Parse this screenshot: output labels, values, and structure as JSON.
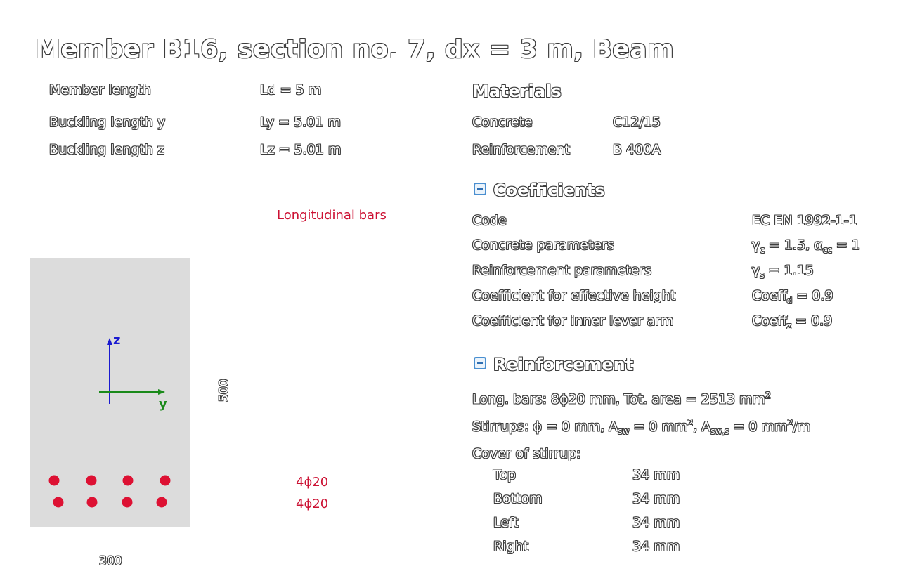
{
  "title": "Member B16, section no. 7, dx = 3 m, Beam",
  "member": {
    "rows": [
      {
        "label": "Member length",
        "value": "Ld = 5 m"
      },
      {
        "label": "Buckling length y",
        "value": "Ly = 5.01 m"
      },
      {
        "label": "Buckling length z",
        "value": "Lz = 5.01 m"
      }
    ]
  },
  "materials": {
    "heading": "Materials",
    "rows": [
      {
        "label": "Concrete",
        "value": "C12/15"
      },
      {
        "label": "Reinforcement",
        "value": "B 400A"
      }
    ]
  },
  "coefficients": {
    "heading": "Coefficients",
    "code_label": "Code",
    "code_value": "EC EN 1992-1-1",
    "concrete_label": "Concrete parameters",
    "concrete_gamma": "1.5",
    "concrete_alpha": "1",
    "reinf_label": "Reinforcement parameters",
    "reinf_gamma": "1.15",
    "eff_height_label": "Coefficient for effective height",
    "eff_height_value": "0.9",
    "lever_label": "Coefficient for inner lever arm",
    "lever_value": "0.9"
  },
  "reinforcement": {
    "heading": "Reinforcement",
    "long_bars_text": "Long. bars: 8ϕ20 mm, Tot. area = 2513 mm",
    "long_bars_sup": "2",
    "stirrups_phi": "0",
    "stirrups_asw": "0",
    "stirrups_asws": "0",
    "cover_label": "Cover of stirrup:",
    "covers": [
      {
        "side": "Top",
        "value": "34 mm"
      },
      {
        "side": "Bottom",
        "value": "34 mm"
      },
      {
        "side": "Left",
        "value": "34 mm"
      },
      {
        "side": "Right",
        "value": "34 mm"
      }
    ]
  },
  "drawing": {
    "caption": "Longitudinal bars",
    "width_label": "300",
    "height_label": "500",
    "axis_z": "z",
    "axis_y": "y",
    "bar_group_top": "4ϕ20",
    "bar_group_bottom": "4ϕ20",
    "section_color": "#dcdcdc",
    "bar_color": "#dd1133",
    "axis_z_color": "#1a1ad0",
    "axis_y_color": "#1a8a1a"
  }
}
